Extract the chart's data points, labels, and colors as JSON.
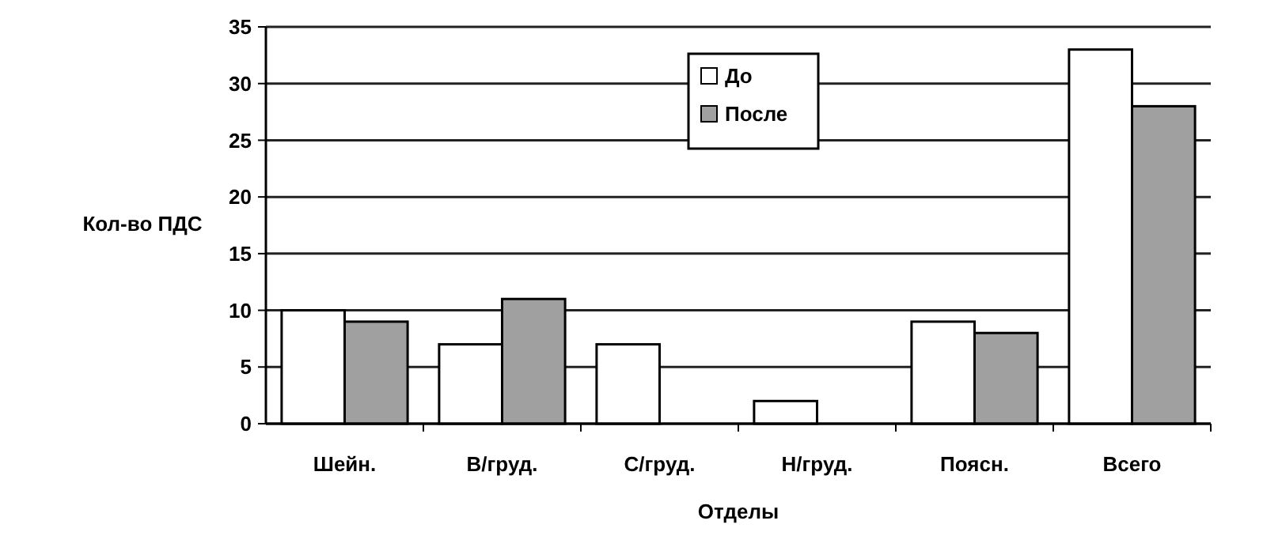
{
  "chart_data": {
    "type": "bar",
    "xlabel": "Отделы",
    "ylabel": "Кол-во ПДС",
    "categories": [
      "Шейн.",
      "В/груд.",
      "С/груд.",
      "Н/груд.",
      "Поясн.",
      "Всего"
    ],
    "series": [
      {
        "name": "До",
        "color": "#ffffff",
        "values": [
          10,
          7,
          7,
          2,
          9,
          33
        ]
      },
      {
        "name": "После",
        "color": "#a0a0a0",
        "values": [
          9,
          11,
          0,
          0,
          8,
          28
        ]
      }
    ],
    "ylim": [
      0,
      35
    ],
    "yticks": [
      0,
      5,
      10,
      15,
      20,
      25,
      30,
      35
    ],
    "grid": "y",
    "legend": "top"
  }
}
